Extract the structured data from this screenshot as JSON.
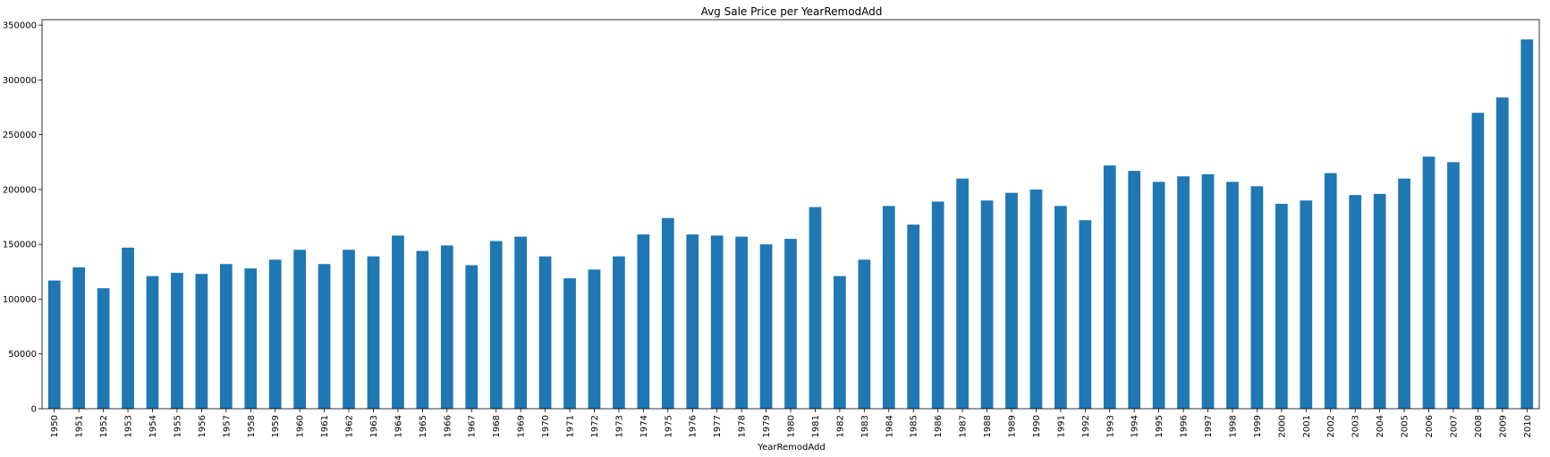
{
  "chart_data": {
    "type": "bar",
    "title": "Avg Sale Price per YearRemodAdd",
    "xlabel": "YearRemodAdd",
    "ylabel": "",
    "ylim": [
      0,
      355000
    ],
    "yticks": [
      0,
      50000,
      100000,
      150000,
      200000,
      250000,
      300000,
      350000
    ],
    "bar_color": "#1f77b4",
    "grid": false,
    "categories": [
      "1950",
      "1951",
      "1952",
      "1953",
      "1954",
      "1955",
      "1956",
      "1957",
      "1958",
      "1959",
      "1960",
      "1961",
      "1962",
      "1963",
      "1964",
      "1965",
      "1966",
      "1967",
      "1968",
      "1969",
      "1970",
      "1971",
      "1972",
      "1973",
      "1974",
      "1975",
      "1976",
      "1977",
      "1978",
      "1979",
      "1980",
      "1981",
      "1982",
      "1983",
      "1984",
      "1985",
      "1986",
      "1987",
      "1988",
      "1989",
      "1990",
      "1991",
      "1992",
      "1993",
      "1994",
      "1995",
      "1996",
      "1997",
      "1998",
      "1999",
      "2000",
      "2001",
      "2002",
      "2003",
      "2004",
      "2005",
      "2006",
      "2007",
      "2008",
      "2009",
      "2010"
    ],
    "values": [
      117000,
      129000,
      110000,
      147000,
      121000,
      124000,
      123000,
      132000,
      128000,
      136000,
      145000,
      132000,
      145000,
      139000,
      158000,
      144000,
      149000,
      131000,
      153000,
      157000,
      139000,
      119000,
      127000,
      139000,
      159000,
      174000,
      159000,
      158000,
      157000,
      150000,
      155000,
      184000,
      121000,
      136000,
      185000,
      168000,
      189000,
      210000,
      190000,
      197000,
      200000,
      185000,
      172000,
      222000,
      217000,
      207000,
      212000,
      214000,
      207000,
      203000,
      187000,
      190000,
      215000,
      195000,
      196000,
      210000,
      230000,
      225000,
      270000,
      284000,
      337000
    ]
  }
}
